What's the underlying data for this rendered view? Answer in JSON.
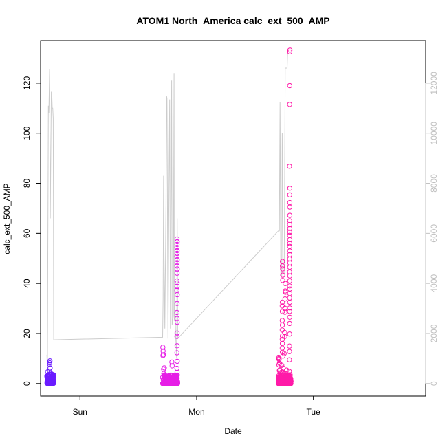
{
  "chart_data": {
    "type": "scatter",
    "title": "ATOM1 North_America calc_ext_500_AMP",
    "xlabel": "Date",
    "ylabel": "calc_ext_500_AMP",
    "x_ticks": [
      "Sun",
      "Mon",
      "Tue"
    ],
    "y_ticks": [
      "0",
      "20",
      "40",
      "60",
      "80",
      "100",
      "120"
    ],
    "y2_ticks": [
      "0",
      "2000",
      "4000",
      "6000",
      "8000",
      "10000",
      "12000"
    ],
    "ylim": [
      -5,
      137
    ],
    "y2lim": [
      -500,
      13700
    ],
    "grid": false,
    "legend": "none",
    "x_axis_note": "x values are hours after the start of Saturday (Sun at 24 h, Mon at 48 h, Tue at 72 h)",
    "xlim": [
      15.9,
      95.1
    ],
    "colors": {
      "line": "#cccccc",
      "axis": "#000000",
      "axis2": "#c0c0c0"
    },
    "line_series": {
      "axis": "right",
      "points": [
        [
          17.2,
          1150
        ],
        [
          17.3,
          500
        ],
        [
          17.5,
          11100
        ],
        [
          17.6,
          10800
        ],
        [
          17.75,
          12550
        ],
        [
          17.9,
          6600
        ],
        [
          18.1,
          11650
        ],
        [
          18.2,
          11600
        ],
        [
          18.3,
          11000
        ],
        [
          18.4,
          11000
        ],
        [
          18.5,
          10600
        ],
        [
          18.6,
          1750
        ],
        [
          41.0,
          1850
        ],
        [
          41.1,
          3400
        ],
        [
          41.2,
          8300
        ],
        [
          41.3,
          5050
        ],
        [
          41.45,
          2200
        ],
        [
          41.7,
          7200
        ],
        [
          41.8,
          11500
        ],
        [
          41.9,
          11400
        ],
        [
          42.1,
          1800
        ],
        [
          42.3,
          7800
        ],
        [
          42.45,
          11350
        ],
        [
          42.6,
          2200
        ],
        [
          42.85,
          12100
        ],
        [
          42.95,
          2350
        ],
        [
          43.2,
          2700
        ],
        [
          43.35,
          12400
        ],
        [
          43.4,
          2500
        ],
        [
          43.5,
          3200
        ],
        [
          43.7,
          1800
        ],
        [
          43.9,
          1000
        ],
        [
          44.0,
          6600
        ],
        [
          44.1,
          1800
        ],
        [
          64.8,
          6100
        ],
        [
          65.0,
          6100
        ],
        [
          65.15,
          11250
        ],
        [
          65.3,
          4400
        ],
        [
          65.5,
          4300
        ],
        [
          65.6,
          10000
        ],
        [
          65.75,
          4400
        ],
        [
          66.0,
          4400
        ],
        [
          66.1,
          7700
        ],
        [
          66.2,
          12600
        ],
        [
          66.6,
          12600
        ],
        [
          66.7,
          13250
        ],
        [
          67.4,
          13250
        ]
      ]
    },
    "series": [
      {
        "color": "#6a1cff",
        "x_range": [
          17.2,
          18.6
        ],
        "n": 90,
        "values": [
          [
            17.25,
            0.8
          ],
          [
            17.3,
            2.5
          ],
          [
            17.35,
            4.7
          ],
          [
            17.4,
            1.5
          ],
          [
            17.45,
            0.6
          ],
          [
            17.5,
            3.1
          ],
          [
            17.55,
            1.2
          ],
          [
            17.6,
            2.8
          ],
          [
            17.65,
            0.4
          ],
          [
            17.7,
            3.6
          ],
          [
            17.75,
            5.0
          ],
          [
            17.8,
            8.3
          ],
          [
            17.8,
            7.6
          ],
          [
            17.82,
            9.1
          ],
          [
            17.85,
            6.2
          ],
          [
            17.9,
            2.0
          ],
          [
            17.95,
            4.1
          ],
          [
            18.0,
            1.3
          ],
          [
            18.05,
            3.0
          ],
          [
            18.1,
            0.7
          ],
          [
            18.15,
            2.2
          ],
          [
            18.2,
            3.8
          ],
          [
            18.25,
            1.0
          ],
          [
            18.3,
            2.6
          ],
          [
            18.35,
            0.5
          ],
          [
            18.4,
            3.3
          ],
          [
            18.45,
            1.7
          ],
          [
            18.5,
            2.9
          ],
          [
            18.55,
            0.9
          ],
          [
            18.6,
            1.9
          ]
        ]
      },
      {
        "color": "#e61ee6",
        "x_range": [
          41.0,
          44.1
        ],
        "n": 160,
        "values": [
          [
            41.05,
            14.5
          ],
          [
            41.08,
            11.2
          ],
          [
            41.1,
            13.0
          ],
          [
            41.15,
            11.5
          ],
          [
            41.2,
            5.8
          ],
          [
            41.25,
            4.0
          ],
          [
            41.3,
            2.7
          ],
          [
            41.35,
            6.3
          ],
          [
            41.4,
            3.5
          ],
          [
            41.5,
            1.4
          ],
          [
            41.6,
            2.3
          ],
          [
            41.7,
            0.8
          ],
          [
            41.8,
            2.1
          ],
          [
            41.9,
            1.0
          ],
          [
            42.0,
            2.9
          ],
          [
            42.1,
            0.6
          ],
          [
            42.2,
            1.6
          ],
          [
            42.3,
            3.1
          ],
          [
            42.4,
            0.9
          ],
          [
            42.5,
            2.4
          ],
          [
            42.6,
            1.2
          ],
          [
            42.7,
            3.4
          ],
          [
            42.8,
            1.8
          ],
          [
            42.9,
            8.6
          ],
          [
            42.95,
            7.1
          ],
          [
            43.0,
            2.6
          ],
          [
            43.1,
            0.7
          ],
          [
            43.2,
            1.9
          ],
          [
            43.3,
            3.0
          ],
          [
            43.4,
            0.5
          ],
          [
            43.5,
            1.4
          ],
          [
            43.6,
            2.8
          ],
          [
            43.7,
            1.1
          ],
          [
            43.75,
            2.5
          ],
          [
            43.8,
            0.8
          ],
          [
            43.85,
            3.2
          ],
          [
            43.9,
            1.6
          ],
          [
            43.95,
            2.2
          ],
          [
            43.95,
            12.3
          ],
          [
            43.97,
            15.1
          ],
          [
            43.95,
            18.9
          ],
          [
            43.98,
            20.2
          ],
          [
            44.0,
            24.5
          ],
          [
            43.97,
            26.0
          ],
          [
            43.95,
            28.4
          ],
          [
            43.98,
            32.0
          ],
          [
            44.0,
            35.5
          ],
          [
            43.95,
            37.3
          ],
          [
            43.97,
            38.8
          ],
          [
            43.99,
            40.2
          ],
          [
            43.95,
            41.0
          ],
          [
            43.98,
            44.1
          ],
          [
            44.0,
            45.8
          ],
          [
            43.96,
            47.0
          ],
          [
            43.98,
            48.3
          ],
          [
            44.0,
            49.5
          ],
          [
            43.95,
            50.8
          ],
          [
            43.97,
            52.0
          ],
          [
            43.99,
            53.1
          ],
          [
            43.96,
            54.4
          ],
          [
            43.98,
            55.6
          ],
          [
            44.0,
            56.7
          ],
          [
            43.97,
            57.8
          ],
          [
            43.95,
            6.1
          ],
          [
            43.97,
            4.5
          ],
          [
            44.0,
            8.9
          ],
          [
            43.96,
            2.1
          ],
          [
            43.98,
            1.2
          ],
          [
            44.02,
            3.4
          ],
          [
            44.05,
            0.9
          ]
        ]
      },
      {
        "color": "#ff1aa8",
        "x_range": [
          64.8,
          67.4
        ],
        "n": 230,
        "values": [
          [
            64.85,
            10.5
          ],
          [
            64.9,
            10.0
          ],
          [
            64.92,
            7.5
          ],
          [
            64.95,
            9.6
          ],
          [
            65.0,
            5.2
          ],
          [
            65.05,
            8.1
          ],
          [
            65.1,
            5.5
          ],
          [
            65.15,
            4.2
          ],
          [
            65.2,
            3.0
          ],
          [
            65.25,
            2.3
          ],
          [
            65.3,
            1.2
          ],
          [
            65.35,
            0.6
          ],
          [
            65.4,
            3.4
          ],
          [
            65.45,
            1.8
          ],
          [
            65.5,
            7.3
          ],
          [
            65.55,
            4.7
          ],
          [
            65.6,
            0.9
          ],
          [
            65.62,
            32.5
          ],
          [
            65.6,
            31.0
          ],
          [
            65.62,
            28.8
          ],
          [
            65.6,
            25.2
          ],
          [
            65.62,
            23.4
          ],
          [
            65.6,
            21.4
          ],
          [
            65.62,
            19.0
          ],
          [
            65.6,
            17.6
          ],
          [
            65.62,
            16.0
          ],
          [
            65.6,
            14.2
          ],
          [
            65.62,
            12.5
          ],
          [
            65.64,
            47.0
          ],
          [
            65.64,
            48.8
          ],
          [
            65.68,
            45.8
          ],
          [
            65.7,
            41.2
          ],
          [
            65.7,
            43.3
          ],
          [
            65.72,
            11.0
          ],
          [
            65.75,
            6.2
          ],
          [
            65.8,
            2.4
          ],
          [
            65.85,
            0.8
          ],
          [
            65.9,
            3.9
          ],
          [
            65.95,
            1.5
          ],
          [
            66.0,
            12.0
          ],
          [
            66.05,
            2.6
          ],
          [
            66.1,
            20.4
          ],
          [
            66.12,
            18.8
          ],
          [
            66.15,
            28.5
          ],
          [
            66.15,
            30.1
          ],
          [
            66.18,
            33.8
          ],
          [
            66.2,
            37.0
          ],
          [
            66.22,
            40.0
          ],
          [
            66.25,
            36.5
          ],
          [
            66.3,
            4.0
          ],
          [
            66.35,
            1.1
          ],
          [
            66.4,
            2.9
          ],
          [
            66.45,
            0.7
          ],
          [
            66.5,
            5.4
          ],
          [
            66.55,
            1.6
          ],
          [
            66.6,
            3.2
          ],
          [
            66.65,
            0.9
          ],
          [
            66.7,
            2.1
          ],
          [
            66.75,
            1.3
          ],
          [
            66.8,
            3.5
          ],
          [
            66.85,
            2.2
          ],
          [
            66.9,
            0.6
          ],
          [
            66.95,
            1.8
          ],
          [
            67.0,
            2.5
          ],
          [
            67.05,
            4.9
          ],
          [
            67.08,
            9.5
          ],
          [
            67.1,
            12.8
          ],
          [
            67.1,
            15.0
          ],
          [
            67.12,
            19.8
          ],
          [
            67.12,
            24.0
          ],
          [
            67.14,
            26.5
          ],
          [
            67.12,
            28.8
          ],
          [
            67.14,
            30.2
          ],
          [
            67.16,
            32.5
          ],
          [
            67.12,
            34.2
          ],
          [
            67.14,
            36.0
          ],
          [
            67.16,
            37.8
          ],
          [
            67.12,
            39.0
          ],
          [
            67.14,
            41.0
          ],
          [
            67.16,
            43.0
          ],
          [
            67.12,
            44.6
          ],
          [
            67.14,
            46.5
          ],
          [
            67.16,
            48.2
          ],
          [
            67.12,
            49.8
          ],
          [
            67.14,
            51.5
          ],
          [
            67.16,
            53.0
          ],
          [
            67.12,
            54.8
          ],
          [
            67.14,
            56.0
          ],
          [
            67.16,
            57.5
          ],
          [
            67.12,
            59.2
          ],
          [
            67.14,
            60.5
          ],
          [
            67.16,
            62.0
          ],
          [
            67.12,
            63.5
          ],
          [
            67.14,
            65.0
          ],
          [
            67.16,
            67.2
          ],
          [
            67.14,
            70.5
          ],
          [
            67.16,
            72.3
          ],
          [
            67.14,
            75.4
          ],
          [
            67.16,
            78.0
          ],
          [
            67.1,
            86.8
          ],
          [
            67.12,
            111.5
          ],
          [
            67.14,
            119.0
          ],
          [
            67.16,
            132.5
          ],
          [
            67.18,
            133.2
          ],
          [
            67.2,
            3.0
          ],
          [
            67.25,
            1.2
          ],
          [
            67.3,
            0.5
          ],
          [
            67.35,
            2.0
          ],
          [
            67.4,
            0.9
          ]
        ]
      }
    ]
  }
}
